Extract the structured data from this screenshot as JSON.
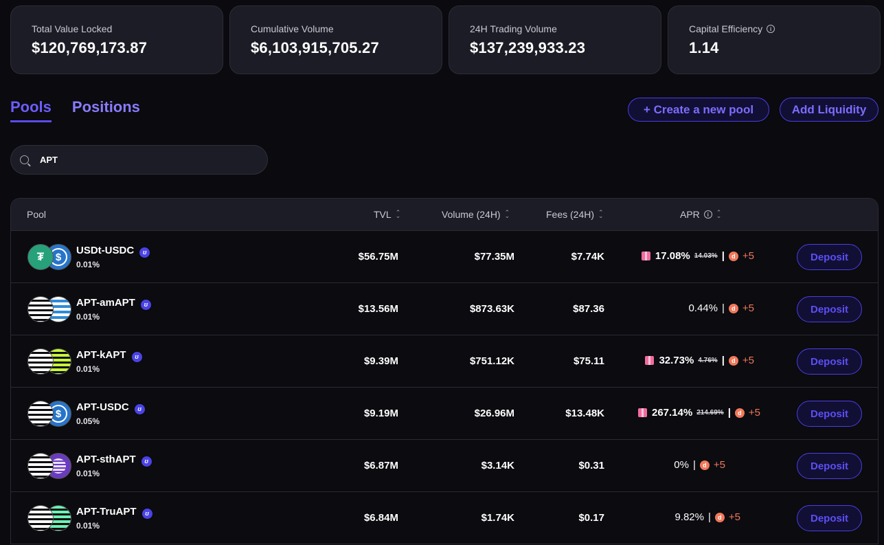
{
  "stats": [
    {
      "label": "Total Value Locked",
      "value": "$120,769,173.87",
      "info": false
    },
    {
      "label": "Cumulative Volume",
      "value": "$6,103,915,705.27",
      "info": false
    },
    {
      "label": "24H Trading Volume",
      "value": "$137,239,933.23",
      "info": false
    },
    {
      "label": "Capital Efficiency",
      "value": "1.14",
      "info": true
    }
  ],
  "tabs": {
    "pools": "Pools",
    "positions": "Positions"
  },
  "actions": {
    "create": "+ Create a new pool",
    "add": "Add Liquidity"
  },
  "search": {
    "value": "APT",
    "placeholder": ""
  },
  "table": {
    "headers": {
      "pool": "Pool",
      "tvl": "TVL",
      "volume": "Volume (24H)",
      "fees": "Fees (24H)",
      "apr": "APR"
    },
    "deposit_label": "Deposit",
    "rows": [
      {
        "name": "USDt-USDC",
        "fee": "0.01%",
        "tvl": "$56.75M",
        "volume": "$77.35M",
        "fees": "$7.74K",
        "apr": "17.08%",
        "apr_old": "14.03%",
        "bonus": "+5",
        "gift": true,
        "coins": [
          "tether",
          "usdc"
        ]
      },
      {
        "name": "APT-amAPT",
        "fee": "0.01%",
        "tvl": "$13.56M",
        "volume": "$873.63K",
        "fees": "$87.36",
        "apr": "0.44%",
        "apr_old": "",
        "bonus": "+5",
        "gift": false,
        "coins": [
          "apt",
          "amapt"
        ]
      },
      {
        "name": "APT-kAPT",
        "fee": "0.01%",
        "tvl": "$9.39M",
        "volume": "$751.12K",
        "fees": "$75.11",
        "apr": "32.73%",
        "apr_old": "4.76%",
        "bonus": "+5",
        "gift": true,
        "coins": [
          "apt",
          "kapt"
        ]
      },
      {
        "name": "APT-USDC",
        "fee": "0.05%",
        "tvl": "$9.19M",
        "volume": "$26.96M",
        "fees": "$13.48K",
        "apr": "267.14%",
        "apr_old": "214.69%",
        "bonus": "+5",
        "gift": true,
        "coins": [
          "apt",
          "usdc"
        ]
      },
      {
        "name": "APT-sthAPT",
        "fee": "0.01%",
        "tvl": "$6.87M",
        "volume": "$3.14K",
        "fees": "$0.31",
        "apr": "0%",
        "apr_old": "",
        "bonus": "+5",
        "gift": false,
        "coins": [
          "apt",
          "sthapt"
        ]
      },
      {
        "name": "APT-TruAPT",
        "fee": "0.01%",
        "tvl": "$6.84M",
        "volume": "$1.74K",
        "fees": "$0.17",
        "apr": "9.82%",
        "apr_old": "",
        "bonus": "+5",
        "gift": false,
        "coins": [
          "apt",
          "truapt"
        ]
      }
    ]
  },
  "colors": {
    "accent": "#5b4cf0",
    "bonus": "#f1785a",
    "gift": "#f26ba0"
  },
  "icons": {
    "search": "search-icon",
    "info": "info-icon",
    "sort": "sort-icon",
    "gift": "gift-icon",
    "reward": "reward-d-icon",
    "verified": "verified-badge-icon"
  }
}
